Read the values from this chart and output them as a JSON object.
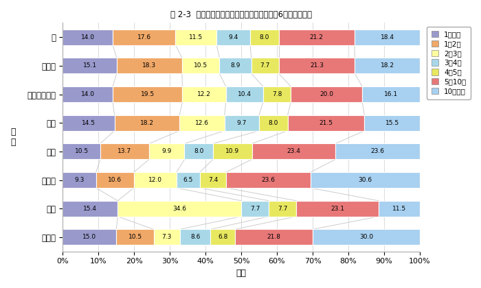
{
  "title": "図 2-3  本人の職業と延滞年数との関係（延滞6ヶ月以上者）",
  "ylabel": "職\n業",
  "xlabel": "割合",
  "categories": [
    "計",
    "正社員",
    "アルバイト等",
    "無職",
    "主婦",
    "自営業",
    "学生",
    "その他"
  ],
  "legend_labels": [
    "1年未満",
    "1～2年",
    "2～3年",
    "3～4年",
    "4～5年",
    "5～10年",
    "10年以上"
  ],
  "colors": [
    "#9999cc",
    "#f0a868",
    "#ffffa0",
    "#a8d8e8",
    "#e8e860",
    "#e87878",
    "#a8d0f0"
  ],
  "legend_colors": [
    "#9999cc",
    "#f0a868",
    "#ffffa0",
    "#a8d8e8",
    "#e8e860",
    "#e87878",
    "#a8d0f0"
  ],
  "data": [
    [
      14.0,
      17.6,
      11.5,
      9.4,
      8.0,
      21.2,
      18.4
    ],
    [
      15.1,
      18.3,
      10.5,
      8.9,
      7.7,
      21.3,
      18.2
    ],
    [
      14.0,
      19.5,
      12.2,
      10.4,
      7.8,
      20.0,
      16.1
    ],
    [
      14.5,
      18.2,
      12.6,
      9.7,
      8.0,
      21.5,
      15.5
    ],
    [
      10.5,
      13.7,
      9.9,
      8.0,
      10.9,
      23.4,
      23.6
    ],
    [
      9.3,
      10.6,
      12.0,
      6.5,
      7.4,
      23.6,
      30.6
    ],
    [
      15.4,
      0.0,
      34.6,
      7.7,
      7.7,
      23.1,
      11.5
    ],
    [
      15.0,
      10.5,
      7.3,
      8.6,
      6.8,
      21.8,
      30.0
    ]
  ],
  "bar_height": 0.55,
  "figsize": [
    7.0,
    4.2
  ],
  "dpi": 100,
  "bg_color": "#ffffff"
}
